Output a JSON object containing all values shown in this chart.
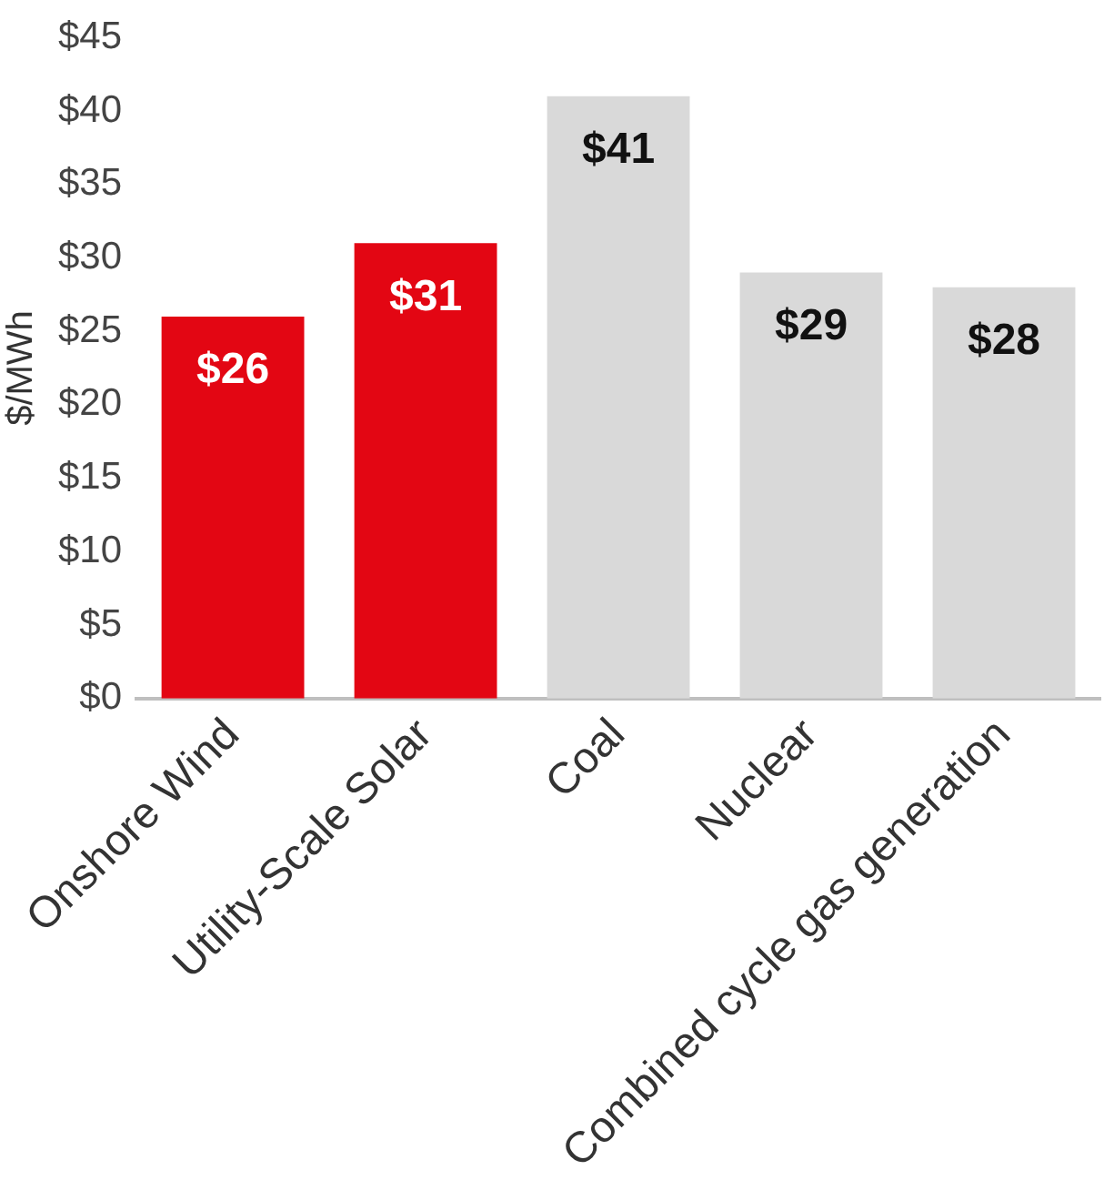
{
  "chart_data": {
    "type": "bar",
    "ylabel": "$/MWh",
    "categories": [
      "Onshore Wind",
      "Utility-Scale Solar",
      "Coal",
      "Nuclear",
      "Combined cycle gas generation"
    ],
    "values": [
      26,
      31,
      41,
      29,
      28
    ],
    "colors": [
      "#e30613",
      "#e30613",
      "#d9d9d9",
      "#d9d9d9",
      "#d9d9d9"
    ],
    "value_labels": [
      "$26",
      "$31",
      "$41",
      "$29",
      "$28"
    ],
    "ylim": [
      0,
      45
    ],
    "yticks": [
      {
        "value": 0,
        "label": "$0"
      },
      {
        "value": 5,
        "label": "$5"
      },
      {
        "value": 10,
        "label": "$10"
      },
      {
        "value": 15,
        "label": "$15"
      },
      {
        "value": 20,
        "label": "$20"
      },
      {
        "value": 25,
        "label": "$25"
      },
      {
        "value": 30,
        "label": "$30"
      },
      {
        "value": 35,
        "label": "$35"
      },
      {
        "value": 40,
        "label": "$40"
      },
      {
        "value": 45,
        "label": "$45"
      }
    ],
    "grid": false,
    "legend": false
  }
}
